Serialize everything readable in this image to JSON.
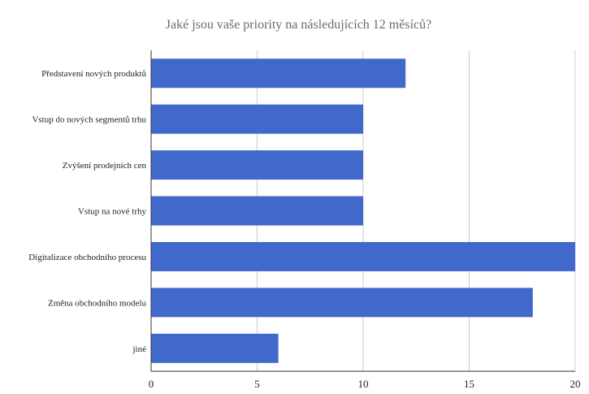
{
  "chart_data": {
    "type": "bar",
    "orientation": "horizontal",
    "title": "Jaké jsou vaše priority na následujících 12 měsíců?",
    "xlabel": "",
    "ylabel": "",
    "categories": [
      "Představení nových produktů",
      "Vstup do nových segmentů trhu",
      "Zvýšení prodejních cen",
      "Vstup na nové trhy",
      "Digitalizace obchodního procesu",
      "Změna obchodního modelu",
      "jiné"
    ],
    "values": [
      12,
      10,
      10,
      10,
      20,
      18,
      6
    ],
    "xlim": [
      0,
      20
    ],
    "xticks": [
      "0",
      "5",
      "10",
      "15",
      "20"
    ],
    "grid": true,
    "legend": "none",
    "colors": {
      "bar": "#4169cc",
      "grid": "#cccccc",
      "axis": "#333333",
      "title": "#6b6b6b"
    }
  }
}
